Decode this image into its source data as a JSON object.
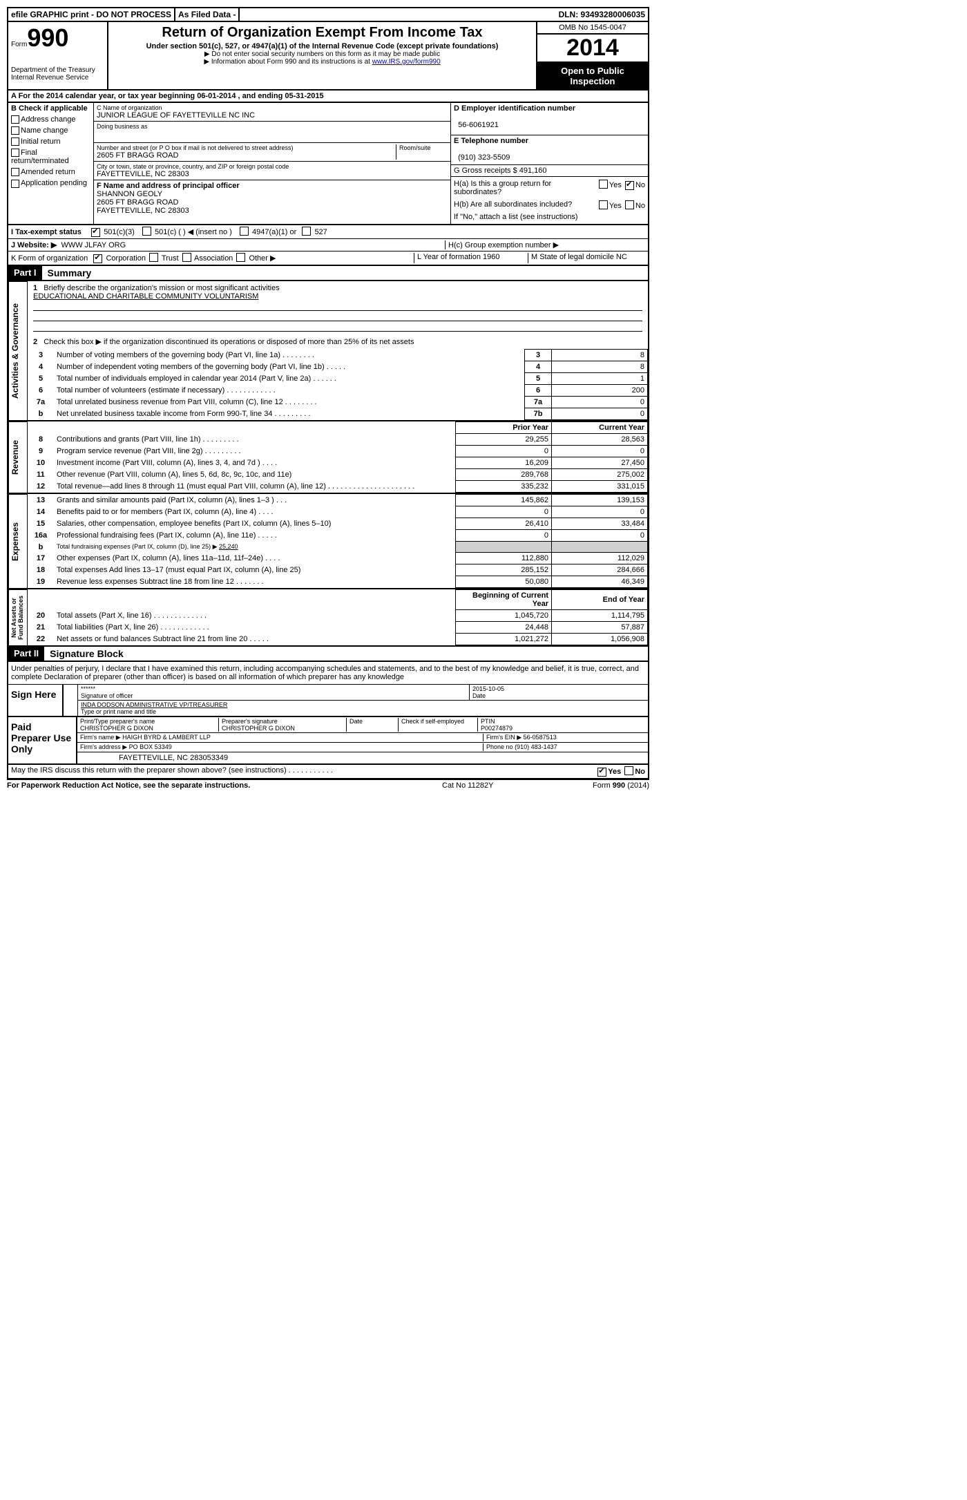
{
  "topbar": {
    "left": "efile GRAPHIC print - DO NOT PROCESS",
    "mid": "As Filed Data -",
    "right": "DLN: 93493280006035"
  },
  "header": {
    "form_label": "Form",
    "form_no": "990",
    "dept": "Department of the Treasury\nInternal Revenue Service",
    "title": "Return of Organization Exempt From Income Tax",
    "subtitle": "Under section 501(c), 527, or 4947(a)(1) of the Internal Revenue Code (except private foundations)",
    "note1": "▶ Do not enter social security numbers on this form as it may be made public",
    "note2": "▶ Information about Form 990 and its instructions is at ",
    "note2_link": "www.IRS.gov/form990",
    "omb": "OMB No 1545-0047",
    "year": "2014",
    "open": "Open to Public Inspection"
  },
  "rowA": "A  For the 2014 calendar year, or tax year beginning 06-01-2014     , and ending 05-31-2015",
  "colB": {
    "label": "B  Check if applicable",
    "opts": [
      "Address change",
      "Name change",
      "Initial return",
      "Final return/terminated",
      "Amended return",
      "Application pending"
    ]
  },
  "colC": {
    "name_lbl": "C Name of organization",
    "name": "JUNIOR LEAGUE OF FAYETTEVILLE NC INC",
    "dba_lbl": "Doing business as",
    "addr_lbl": "Number and street (or P O  box if mail is not delivered to street address)",
    "room_lbl": "Room/suite",
    "addr": "2605 FT BRAGG ROAD",
    "city_lbl": "City or town, state or province, country, and ZIP or foreign postal code",
    "city": "FAYETTEVILLE, NC  28303"
  },
  "colD": {
    "ein_lbl": "D Employer identification number",
    "ein": "56-6061921",
    "tel_lbl": "E Telephone number",
    "tel": "(910) 323-5509",
    "gross_lbl": "G Gross receipts $",
    "gross": "491,160"
  },
  "rowF": {
    "lbl": "F   Name and address of principal officer",
    "name": "SHANNON GEOLY",
    "addr1": "2605 FT BRAGG ROAD",
    "addr2": "FAYETTEVILLE, NC  28303"
  },
  "rowH": {
    "ha": "H(a)  Is this a group return for subordinates?",
    "hb": "H(b)  Are all subordinates included?",
    "hb_note": "If \"No,\" attach a list  (see instructions)",
    "hc": "H(c)  Group exemption number ▶"
  },
  "statusRow": {
    "i": "I  Tax-exempt status",
    "opts": [
      "501(c)(3)",
      "501(c) (   ) ◀ (insert no )",
      "4947(a)(1) or",
      "527"
    ]
  },
  "rowJ": {
    "lbl": "J  Website: ▶",
    "val": "WWW JLFAY ORG"
  },
  "rowK": {
    "k": "K Form of organization",
    "opts": [
      "Corporation",
      "Trust",
      "Association",
      "Other ▶"
    ],
    "l": "L Year of formation  1960",
    "m": "M State of legal domicile   NC"
  },
  "part1": {
    "hdr": "Part I",
    "title": "Summary"
  },
  "summary": {
    "l1_lbl": "Briefly describe the organization's mission or most significant activities",
    "l1_val": "EDUCATIONAL AND CHARITABLE COMMUNITY VOLUNTARISM",
    "l2": "Check this box ▶     if the organization discontinued its operations or disposed of more than 25% of its net assets",
    "rows": [
      {
        "n": "3",
        "d": "Number of voting members of the governing body (Part VI, line 1a)  .   .   .   .   .   .   .   .",
        "k": "3",
        "v": "8"
      },
      {
        "n": "4",
        "d": "Number of independent voting members of the governing body (Part VI, line 1b)  .   .   .   .   .",
        "k": "4",
        "v": "8"
      },
      {
        "n": "5",
        "d": "Total number of individuals employed in calendar year 2014 (Part V, line 2a)  .   .   .   .   .   .",
        "k": "5",
        "v": "1"
      },
      {
        "n": "6",
        "d": "Total number of volunteers (estimate if necessary)  .   .   .   .   .   .   .   .   .   .   .   .",
        "k": "6",
        "v": "200"
      },
      {
        "n": "7a",
        "d": "Total unrelated business revenue from Part VIII, column (C), line 12  .   .   .   .   .   .   .   .",
        "k": "7a",
        "v": "0"
      },
      {
        "n": "b",
        "d": "Net unrelated business taxable income from Form 990-T, line 34  .   .   .   .   .   .   .   .   .",
        "k": "7b",
        "v": "0"
      }
    ]
  },
  "revenue": {
    "hdr_prior": "Prior Year",
    "hdr_curr": "Current Year",
    "rows": [
      {
        "n": "8",
        "d": "Contributions and grants (Part VIII, line 1h)  .   .   .   .   .   .   .   .   .",
        "p": "29,255",
        "c": "28,563"
      },
      {
        "n": "9",
        "d": "Program service revenue (Part VIII, line 2g)  .   .   .   .   .   .   .   .   .",
        "p": "0",
        "c": "0"
      },
      {
        "n": "10",
        "d": "Investment income (Part VIII, column (A), lines 3, 4, and 7d )  .   .   .   .",
        "p": "16,209",
        "c": "27,450"
      },
      {
        "n": "11",
        "d": "Other revenue (Part VIII, column (A), lines 5, 6d, 8c, 9c, 10c, and 11e)",
        "p": "289,768",
        "c": "275,002"
      },
      {
        "n": "12",
        "d": "Total revenue—add lines 8 through 11 (must equal Part VIII, column (A), line 12)  .   .   .   .   .   .   .   .   .   .   .   .   .   .   .   .   .   .   .   .   .",
        "p": "335,232",
        "c": "331,015"
      }
    ]
  },
  "expenses": {
    "rows": [
      {
        "n": "13",
        "d": "Grants and similar amounts paid (Part IX, column (A), lines 1–3 )  .   .   .",
        "p": "145,862",
        "c": "139,153"
      },
      {
        "n": "14",
        "d": "Benefits paid to or for members (Part IX, column (A), line 4)  .   .   .   .",
        "p": "0",
        "c": "0"
      },
      {
        "n": "15",
        "d": "Salaries, other compensation, employee benefits (Part IX, column (A), lines 5–10)",
        "p": "26,410",
        "c": "33,484"
      },
      {
        "n": "16a",
        "d": "Professional fundraising fees (Part IX, column (A), line 11e)  .   .   .   .   .",
        "p": "0",
        "c": "0"
      },
      {
        "n": "b",
        "d": "Total fundraising expenses (Part IX, column (D), line 25) ▶",
        "fv": "25,240",
        "p": "",
        "c": "",
        "shade": true
      },
      {
        "n": "17",
        "d": "Other expenses (Part IX, column (A), lines 11a–11d, 11f–24e)  .   .   .   .",
        "p": "112,880",
        "c": "112,029"
      },
      {
        "n": "18",
        "d": "Total expenses  Add lines 13–17 (must equal Part IX, column (A), line 25)",
        "p": "285,152",
        "c": "284,666"
      },
      {
        "n": "19",
        "d": "Revenue less expenses  Subtract line 18 from line 12  .   .   .   .   .   .   .",
        "p": "50,080",
        "c": "46,349"
      }
    ]
  },
  "netassets": {
    "hdr_prior": "Beginning of Current Year",
    "hdr_curr": "End of Year",
    "rows": [
      {
        "n": "20",
        "d": "Total assets (Part X, line 16)  .   .   .   .   .   .   .   .   .   .   .   .   .",
        "p": "1,045,720",
        "c": "1,114,795"
      },
      {
        "n": "21",
        "d": "Total liabilities (Part X, line 26)  .   .   .   .   .   .   .   .   .   .   .   .",
        "p": "24,448",
        "c": "57,887"
      },
      {
        "n": "22",
        "d": "Net assets or fund balances  Subtract line 21 from line 20  .   .   .   .   .",
        "p": "1,021,272",
        "c": "1,056,908"
      }
    ]
  },
  "part2": {
    "hdr": "Part II",
    "title": "Signature Block"
  },
  "perjury": "Under penalties of perjury, I declare that I have examined this return, including accompanying schedules and statements, and to the best of my knowledge and belief, it is true, correct, and complete  Declaration of preparer (other than officer) is based on all information of which preparer has any knowledge",
  "sign": {
    "here": "Sign Here",
    "stars": "******",
    "sig_lbl": "Signature of officer",
    "date": "2015-10-05",
    "date_lbl": "Date",
    "name": "INDA DODSON  ADMINISTRATIVE VP/TREASURER",
    "name_lbl": "Type or print name and title"
  },
  "paid": {
    "here": "Paid Preparer Use Only",
    "prep_lbl": "Print/Type preparer's name",
    "prep": "CHRISTOPHER G DIXON",
    "psig_lbl": "Preparer's signature",
    "psig": "CHRISTOPHER G DIXON",
    "pdate_lbl": "Date",
    "check_lbl": "Check     if self-employed",
    "ptin_lbl": "PTIN",
    "ptin": "P00274879",
    "firm_lbl": "Firm's name      ▶",
    "firm": "HAIGH BYRD & LAMBERT LLP",
    "fein_lbl": "Firm's EIN ▶",
    "fein": "56-0587513",
    "faddr_lbl": "Firm's address ▶",
    "faddr1": "PO BOX 53349",
    "faddr2": "FAYETTEVILLE, NC  283053349",
    "phone_lbl": "Phone no",
    "phone": "(910) 483-1437"
  },
  "discuss": "May the IRS discuss this return with the preparer shown above? (see instructions)  .   .   .   .   .   .   .   .   .   .   .",
  "footer": {
    "left": "For Paperwork Reduction Act Notice, see the separate instructions.",
    "mid": "Cat No 11282Y",
    "right": "Form 990 (2014)"
  },
  "yn": {
    "yes": "Yes",
    "no": "No"
  }
}
